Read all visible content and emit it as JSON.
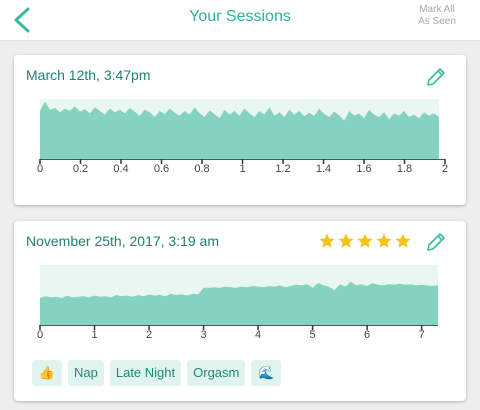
{
  "header": {
    "back_icon": "chevron-left-icon",
    "title": "Your Sessions",
    "mark_all_line1": "Mark All",
    "mark_all_line2": "As Seen"
  },
  "colors": {
    "accent": "#3cb99e",
    "area_fill": "#84d3c1",
    "band_bg": "#e9f6f2",
    "star": "#f2c418",
    "tag_bg": "#e1f3ef"
  },
  "sessions": [
    {
      "date": "March 12th, 3:47pm",
      "edit_icon": "pencil-icon",
      "rating": null,
      "tags": []
    },
    {
      "date": "November 25th, 2017, 3:19 am",
      "edit_icon": "pencil-icon",
      "rating": 5,
      "tags": [
        {
          "label": "👍",
          "icon": "thumbs-up-icon"
        },
        {
          "label": "Nap"
        },
        {
          "label": "Late Night"
        },
        {
          "label": "Orgasm"
        },
        {
          "label": "🌊",
          "icon": "wave-icon"
        }
      ]
    }
  ],
  "chart_data": [
    {
      "type": "area",
      "title": "",
      "xlabel": "",
      "ylabel": "",
      "xlim": [
        0,
        2
      ],
      "ylim": [
        0,
        1
      ],
      "ticks": [
        "0",
        "0.2",
        "0.4",
        "0.6",
        "0.8",
        "1",
        "1.2",
        "1.4",
        "1.6",
        "1.8",
        "2"
      ],
      "x_end": 1.97,
      "series": [
        {
          "values": [
            0.8,
            0.96,
            0.82,
            0.85,
            0.78,
            0.84,
            0.8,
            0.88,
            0.79,
            0.83,
            0.76,
            0.86,
            0.8,
            0.74,
            0.84,
            0.78,
            0.82,
            0.76,
            0.85,
            0.79,
            0.72,
            0.82,
            0.78,
            0.7,
            0.8,
            0.75,
            0.84,
            0.77,
            0.72,
            0.8,
            0.74,
            0.86,
            0.76,
            0.7,
            0.81,
            0.75,
            0.68,
            0.82,
            0.74,
            0.8,
            0.72,
            0.84,
            0.76,
            0.7,
            0.8,
            0.74,
            0.86,
            0.72,
            0.78,
            0.7,
            0.82,
            0.74,
            0.8,
            0.71,
            0.77,
            0.72,
            0.84,
            0.75,
            0.7,
            0.79,
            0.73,
            0.64,
            0.8,
            0.72,
            0.76,
            0.68,
            0.82,
            0.74,
            0.7,
            0.78,
            0.66,
            0.76,
            0.72,
            0.8,
            0.7,
            0.74,
            0.68,
            0.78,
            0.72,
            0.76,
            0.7
          ]
        }
      ]
    },
    {
      "type": "area",
      "title": "",
      "xlabel": "",
      "ylabel": "",
      "xlim": [
        0,
        7.3
      ],
      "ylim": [
        0,
        1
      ],
      "ticks": [
        "0",
        "1",
        "2",
        "3",
        "4",
        "5",
        "6",
        "7"
      ],
      "x_end": 7.3,
      "series": [
        {
          "values": [
            0.45,
            0.48,
            0.46,
            0.47,
            0.45,
            0.49,
            0.46,
            0.47,
            0.48,
            0.46,
            0.49,
            0.47,
            0.48,
            0.46,
            0.5,
            0.48,
            0.49,
            0.47,
            0.5,
            0.48,
            0.51,
            0.49,
            0.5,
            0.48,
            0.52,
            0.5,
            0.51,
            0.49,
            0.52,
            0.51,
            0.62,
            0.62,
            0.63,
            0.62,
            0.64,
            0.63,
            0.62,
            0.64,
            0.63,
            0.65,
            0.64,
            0.63,
            0.65,
            0.64,
            0.66,
            0.63,
            0.65,
            0.67,
            0.66,
            0.68,
            0.62,
            0.7,
            0.66,
            0.64,
            0.58,
            0.68,
            0.64,
            0.72,
            0.66,
            0.68,
            0.65,
            0.7,
            0.67,
            0.66,
            0.68,
            0.67,
            0.69,
            0.67,
            0.68,
            0.66,
            0.67,
            0.66,
            0.65,
            0.66
          ]
        }
      ]
    }
  ]
}
